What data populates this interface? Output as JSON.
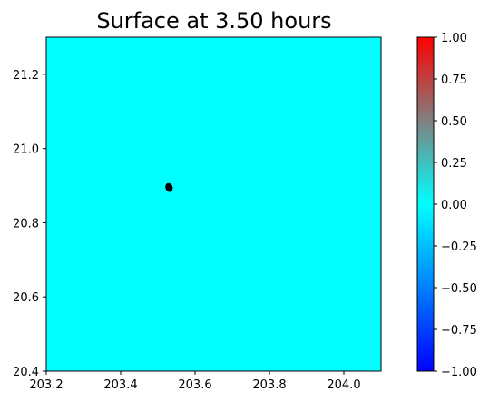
{
  "chart_data": {
    "type": "heatmap",
    "title": "Surface at 3.50 hours",
    "xlabel": "",
    "ylabel": "",
    "xlim": [
      203.2,
      204.1
    ],
    "ylim": [
      20.4,
      21.3
    ],
    "x_ticks": [
      203.2,
      203.4,
      203.6,
      203.8,
      204.0
    ],
    "x_tick_labels": [
      "203.2",
      "203.4",
      "203.6",
      "203.8",
      "204.0"
    ],
    "y_ticks": [
      20.4,
      20.6,
      20.8,
      21.0,
      21.2
    ],
    "y_tick_labels": [
      "20.4",
      "20.6",
      "20.8",
      "21.0",
      "21.2"
    ],
    "field_value": 0.0,
    "field_color": "#00ffff",
    "marker": {
      "x": 203.53,
      "y": 20.895,
      "color": "#000000"
    },
    "grid": false,
    "colorbar": {
      "range": [
        -1.0,
        1.0
      ],
      "ticks": [
        -1.0,
        -0.75,
        -0.5,
        -0.25,
        0.0,
        0.25,
        0.5,
        0.75,
        1.0
      ],
      "tick_labels": [
        "−1.00",
        "−0.75",
        "−0.50",
        "−0.25",
        "0.00",
        "0.25",
        "0.50",
        "0.75",
        "1.00"
      ],
      "colors": [
        {
          "value": -1.0,
          "color": "#0000ff"
        },
        {
          "value": 0.0,
          "color": "#00ffff"
        },
        {
          "value": 0.5,
          "color": "#808080"
        },
        {
          "value": 1.0,
          "color": "#ff0000"
        }
      ]
    }
  }
}
